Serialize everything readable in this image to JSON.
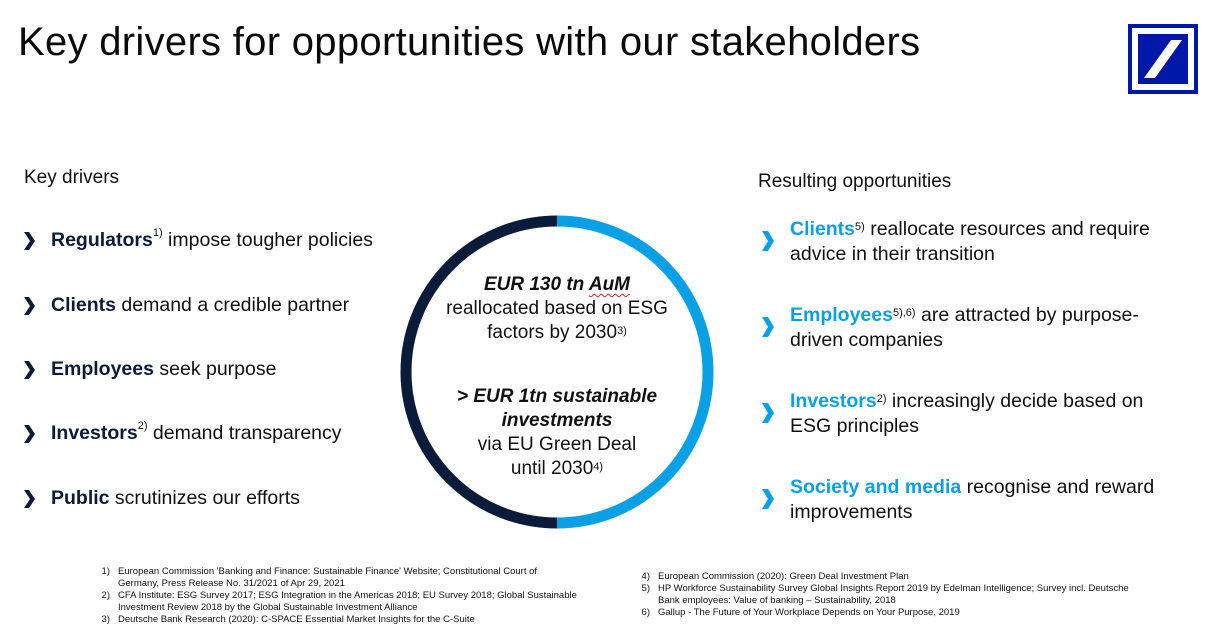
{
  "title": "Key drivers for opportunities with our stakeholders",
  "colors": {
    "brand_blue": "#0018a8",
    "accent": "#0aa0e5",
    "navy": "#0b1b3a"
  },
  "left": {
    "heading": "Key drivers",
    "items": [
      {
        "bold": "Regulators",
        "sup": "1)",
        "rest": " impose tougher policies"
      },
      {
        "bold": "Clients",
        "sup": "",
        "rest": " demand a credible partner"
      },
      {
        "bold": "Employees",
        "sup": "",
        "rest": " seek purpose"
      },
      {
        "bold": "Investors",
        "sup": "2)",
        "rest": " demand transparency"
      },
      {
        "bold": "Public",
        "sup": "",
        "rest": " scrutinizes our efforts"
      }
    ]
  },
  "center": {
    "top_bold": "EUR 130 tn AuM",
    "top_line1": "reallocated based on ESG",
    "top_line2": "factors by 2030",
    "top_sup": "3)",
    "bottom_bold1": "> EUR 1tn sustainable",
    "bottom_bold2": "investments",
    "bottom_line1": "via EU Green Deal",
    "bottom_line2": "until 2030",
    "bottom_sup": "4)"
  },
  "right": {
    "heading": "Resulting opportunities",
    "items": [
      {
        "bold": "Clients",
        "sup": "5)",
        "line1": " reallocate resources and require",
        "line2": "advice in their transition"
      },
      {
        "bold": "Employees",
        "sup": "5),6)",
        "line1": " are attracted by purpose-",
        "line2": "driven companies"
      },
      {
        "bold": "Investors",
        "sup": "2)",
        "line1": " increasingly decide based on",
        "line2": "ESG principles"
      },
      {
        "bold": "Society and media",
        "sup": "",
        "line1": " recognise and reward",
        "line2": "improvements"
      }
    ]
  },
  "footnotes_left": [
    {
      "num": "1)",
      "text": "European Commission 'Banking and Finance: Sustainable Finance' Website; Constitutional Court of",
      "text2": "Germany, Press Release No. 31/2021 of Apr 29, 2021"
    },
    {
      "num": "2)",
      "text": "CFA Institute: ESG Survey 2017; ESG Integration in the Americas 2018; EU Survey 2018; Global Sustainable",
      "text2": "Investment Review 2018 by the Global Sustainable Investment Alliance"
    },
    {
      "num": "3)",
      "text": "Deutsche Bank Research (2020): C-SPACE Essential Market Insights for the C-Suite",
      "text2": ""
    }
  ],
  "footnotes_right": [
    {
      "num": "4)",
      "text": "European Commission (2020): Green Deal Investment Plan",
      "text2": ""
    },
    {
      "num": "5)",
      "text": "HP Workforce Sustainability Survey Global Insights Report 2019 by Edelman Intelligence; Survey incl. Deutsche",
      "text2": "Bank employees: Value of banking – Sustainability, 2018"
    },
    {
      "num": "6)",
      "text": "Gallup - The Future of Your Workplace Depends on Your Purpose, 2019",
      "text2": ""
    }
  ]
}
